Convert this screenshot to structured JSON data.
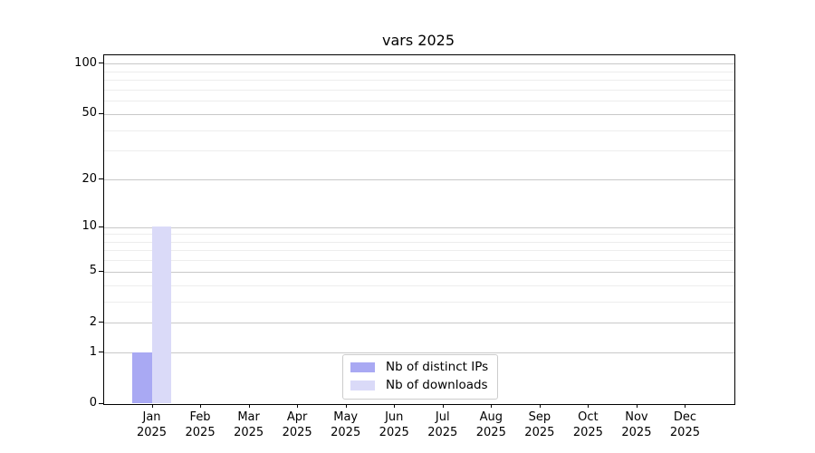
{
  "chart_data": {
    "type": "bar",
    "title": "vars 2025",
    "categories": [
      "Jan 2025",
      "Feb 2025",
      "Mar 2025",
      "Apr 2025",
      "May 2025",
      "Jun 2025",
      "Jul 2025",
      "Aug 2025",
      "Sep 2025",
      "Oct 2025",
      "Nov 2025",
      "Dec 2025"
    ],
    "series": [
      {
        "name": "Nb of distinct IPs",
        "color": "#a9a9f3",
        "values": [
          1,
          0,
          0,
          0,
          0,
          0,
          0,
          0,
          0,
          0,
          0,
          0
        ]
      },
      {
        "name": "Nb of downloads",
        "color": "#dadaf8",
        "values": [
          10,
          0,
          0,
          0,
          0,
          0,
          0,
          0,
          0,
          0,
          0,
          0
        ]
      }
    ],
    "yscale": "log1p",
    "ylim": [
      0,
      113
    ],
    "yticks": [
      0,
      1,
      2,
      5,
      10,
      20,
      50,
      100
    ],
    "yticks_minor": [
      3,
      4,
      6,
      7,
      8,
      9,
      30,
      40,
      60,
      70,
      80,
      90
    ],
    "grid": "horizontal",
    "legend_position": "lower center",
    "colors": {
      "grid_major": "#c9c9c9",
      "grid_minor": "#ededed",
      "axis": "#000000",
      "text": "#000000"
    }
  }
}
